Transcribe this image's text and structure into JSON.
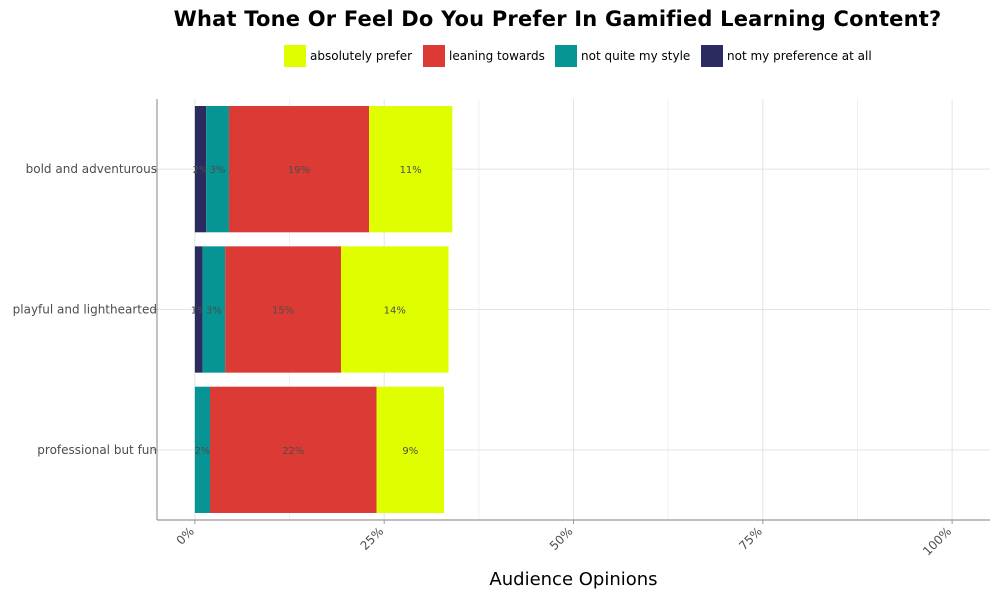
{
  "chart_data": {
    "type": "bar",
    "orientation": "horizontal",
    "stacked": true,
    "title": "What Tone Or Feel Do You Prefer In Gamified Learning Content?",
    "xlabel": "Audience Opinions",
    "ylabel": "",
    "xlim": [
      -5,
      105
    ],
    "x_ticks": [
      0,
      25,
      50,
      75,
      100
    ],
    "x_tick_labels": [
      "0%",
      "25%",
      "50%",
      "75%",
      "100%"
    ],
    "grid": true,
    "legend_position": "top",
    "categories": [
      "bold and adventurous",
      "playful and lighthearted",
      "professional but fun"
    ],
    "series": [
      {
        "name": "not my preference at all",
        "color": "#2b2b5f",
        "values": [
          1.5,
          1,
          0
        ],
        "labels": [
          "2%",
          "1%",
          ""
        ]
      },
      {
        "name": "not quite my style",
        "color": "#069494",
        "values": [
          3,
          3,
          2
        ],
        "labels": [
          "3%",
          "3%",
          "2%"
        ]
      },
      {
        "name": "leaning towards",
        "color": "#dc3a34",
        "values": [
          18.5,
          15.3,
          22
        ],
        "labels": [
          "19%",
          "15%",
          "22%"
        ]
      },
      {
        "name": "absolutely prefer",
        "color": "#dfff00",
        "values": [
          11,
          14.2,
          8.9
        ],
        "labels": [
          "11%",
          "14%",
          "9%"
        ]
      }
    ],
    "legend_order": [
      "absolutely prefer",
      "leaning towards",
      "not quite my style",
      "not my preference at all"
    ]
  }
}
